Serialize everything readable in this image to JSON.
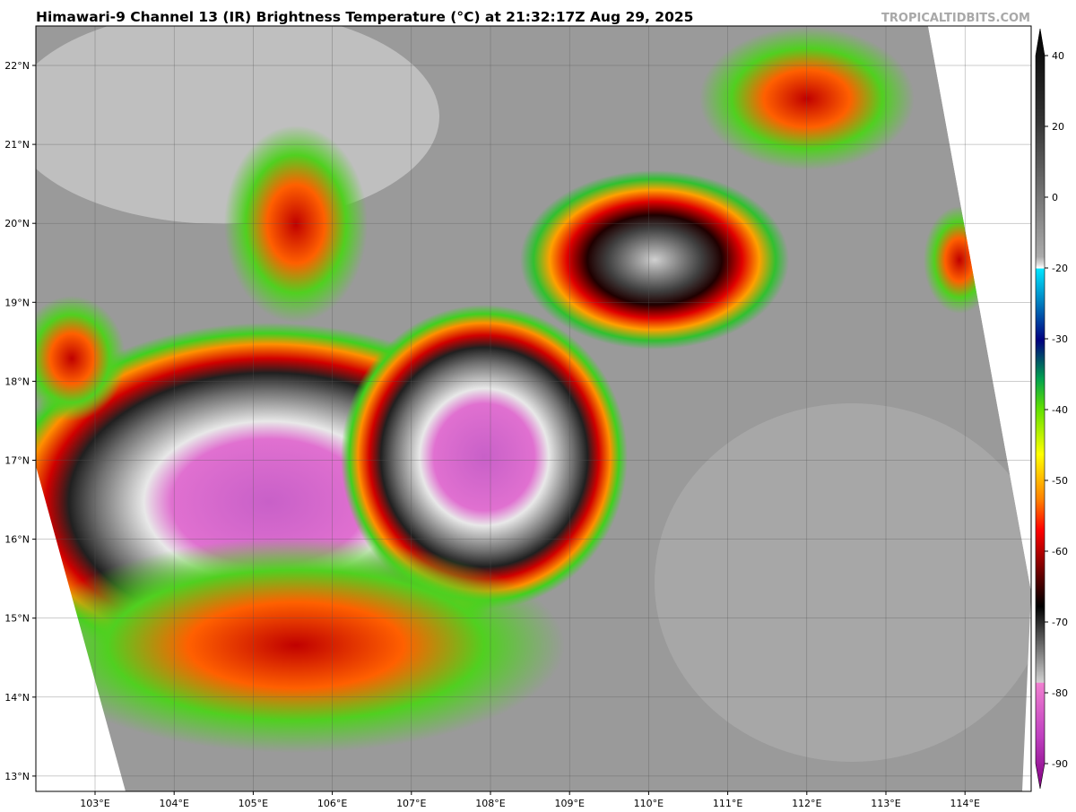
{
  "header": {
    "title": "Himawari-9 Channel 13 (IR) Brightness Temperature (°C) at 21:32:17Z Aug 29, 2025",
    "source": "TROPICALTIDBITS.COM"
  },
  "map": {
    "lat_labels": [
      "22°N",
      "21°N",
      "20°N",
      "19°N",
      "18°N",
      "17°N",
      "16°N",
      "15°N",
      "14°N",
      "13°N"
    ],
    "lon_labels": [
      "103°E",
      "104°E",
      "105°E",
      "106°E",
      "107°E",
      "108°E",
      "109°E",
      "110°E",
      "111°E",
      "112°E",
      "113°E",
      "114°E"
    ]
  },
  "colorbar": {
    "ticks": [
      40,
      20,
      0,
      -20,
      -30,
      -40,
      -50,
      -60,
      -70,
      -80,
      -90
    ]
  }
}
